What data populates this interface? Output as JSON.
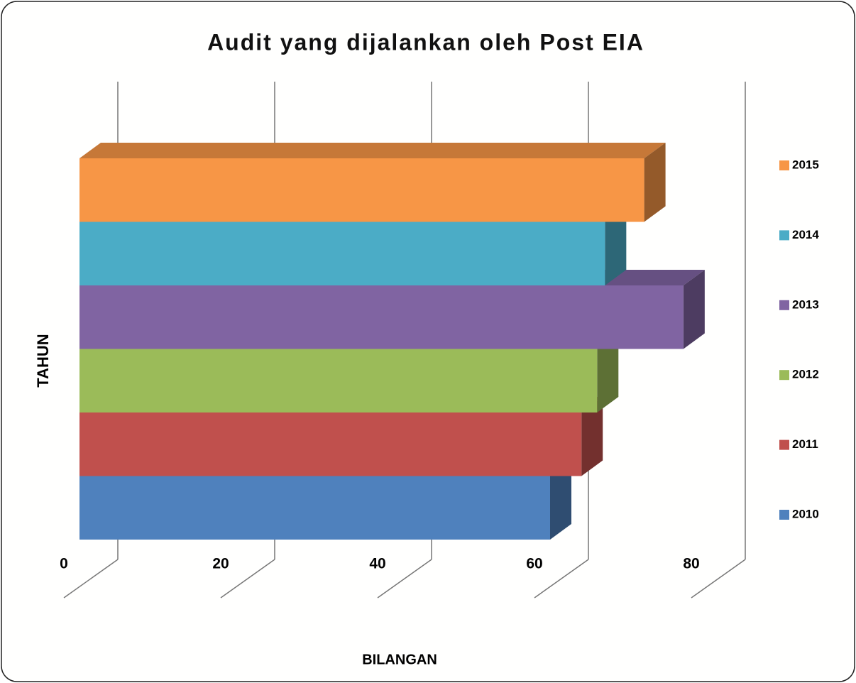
{
  "chart_data": {
    "type": "bar3d",
    "orientation": "horizontal",
    "title": "Audit yang dijalankan oleh Post EIA",
    "x_label": "BILANGAN",
    "y_label": "TAHUN",
    "series": [
      {
        "name": "2010",
        "color": "#4f81bd",
        "values": [
          60
        ]
      },
      {
        "name": "2011",
        "color": "#c0504d",
        "values": [
          64
        ]
      },
      {
        "name": "2012",
        "color": "#9bbb59",
        "values": [
          66
        ]
      },
      {
        "name": "2013",
        "color": "#8064a2",
        "values": [
          77
        ]
      },
      {
        "name": "2014",
        "color": "#4bacc6",
        "values": [
          67
        ]
      },
      {
        "name": "2015",
        "color": "#f79646",
        "values": [
          72
        ]
      }
    ],
    "xlim": [
      0,
      80
    ],
    "xticks": [
      0,
      20,
      40,
      60,
      80
    ],
    "grid": true,
    "legend": "right"
  }
}
